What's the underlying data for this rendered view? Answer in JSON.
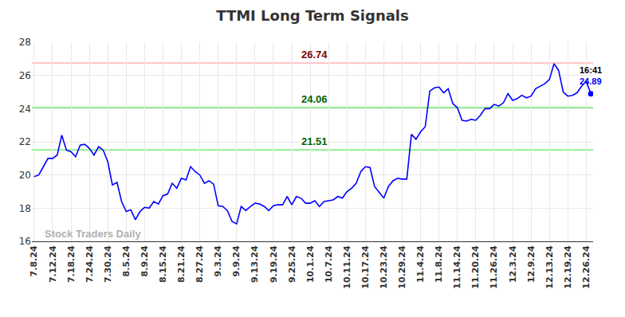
{
  "chart_data": {
    "type": "line",
    "title": "TTMI Long Term Signals",
    "color": "#0000ff",
    "marker": "circle",
    "grid": true,
    "ylim": [
      16,
      28
    ],
    "yticks": [
      16,
      18,
      20,
      22,
      24,
      26,
      28
    ],
    "categories": [
      "7.8.24",
      null,
      null,
      null,
      "7.12.24",
      null,
      null,
      null,
      "7.18.24",
      null,
      null,
      null,
      "7.24.24",
      null,
      null,
      null,
      "7.30.24",
      null,
      null,
      null,
      "8.5.24",
      null,
      null,
      null,
      "8.9.24",
      null,
      null,
      null,
      "8.15.24",
      null,
      null,
      null,
      "8.21.24",
      null,
      null,
      null,
      "8.27.24",
      null,
      null,
      null,
      "9.3.24",
      null,
      null,
      null,
      "9.9.24",
      null,
      null,
      null,
      "9.13.24",
      null,
      null,
      null,
      "9.19.24",
      null,
      null,
      null,
      "9.25.24",
      null,
      null,
      null,
      "10.1.24",
      null,
      null,
      null,
      "10.7.24",
      null,
      null,
      null,
      "10.11.24",
      null,
      null,
      null,
      "10.17.24",
      null,
      null,
      null,
      "10.23.24",
      null,
      null,
      null,
      "10.29.24",
      null,
      null,
      null,
      "11.4.24",
      null,
      null,
      null,
      "11.8.24",
      null,
      null,
      null,
      "11.14.24",
      null,
      null,
      null,
      "11.20.24",
      null,
      null,
      null,
      "11.26.24",
      null,
      null,
      null,
      "12.3.24",
      null,
      null,
      null,
      "12.9.24",
      null,
      null,
      null,
      "12.13.24",
      null,
      null,
      null,
      "12.19.24",
      null,
      null,
      null,
      "12.26.24",
      null
    ],
    "values": [
      19.9,
      20.0,
      20.5,
      21.0,
      21.0,
      21.2,
      22.4,
      21.5,
      21.4,
      21.1,
      21.8,
      21.85,
      21.6,
      21.2,
      21.7,
      21.5,
      20.8,
      19.4,
      19.55,
      18.4,
      17.8,
      17.9,
      17.3,
      17.8,
      18.05,
      18.0,
      18.4,
      18.25,
      18.75,
      18.85,
      19.5,
      19.2,
      19.8,
      19.7,
      20.5,
      20.2,
      20.0,
      19.5,
      19.65,
      19.45,
      18.15,
      18.1,
      17.85,
      17.2,
      17.05,
      18.1,
      17.85,
      18.1,
      18.3,
      18.25,
      18.1,
      17.85,
      18.15,
      18.2,
      18.2,
      18.7,
      18.2,
      18.7,
      18.6,
      18.3,
      18.3,
      18.45,
      18.1,
      18.4,
      18.45,
      18.5,
      18.7,
      18.6,
      19.0,
      19.2,
      19.5,
      20.2,
      20.5,
      20.45,
      19.3,
      18.95,
      18.6,
      19.3,
      19.65,
      19.8,
      19.75,
      19.75,
      22.45,
      22.15,
      22.6,
      22.9,
      25.05,
      25.25,
      25.3,
      24.95,
      25.2,
      24.3,
      24.05,
      23.3,
      23.25,
      23.35,
      23.3,
      23.6,
      24.0,
      24.0,
      24.25,
      24.15,
      24.35,
      24.9,
      24.5,
      24.6,
      24.8,
      24.65,
      24.75,
      25.2,
      25.35,
      25.5,
      25.75,
      26.7,
      26.3,
      25.0,
      24.75,
      24.8,
      24.95,
      25.35,
      25.65,
      24.89
    ],
    "levels": [
      {
        "value": 26.74,
        "color": "#ffc0c0",
        "label_color": "#800000"
      },
      {
        "value": 24.06,
        "color": "#90ee90",
        "label_color": "#006400"
      },
      {
        "value": 21.51,
        "color": "#90ee90",
        "label_color": "#006400"
      }
    ],
    "last_time": "16:41",
    "watermark": "Stock Traders Daily"
  }
}
